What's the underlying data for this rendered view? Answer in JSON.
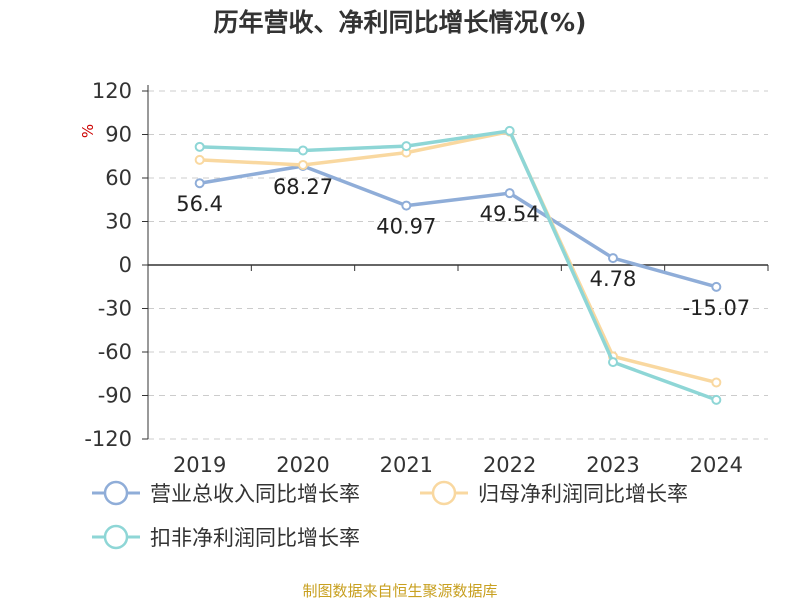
{
  "chart_data": {
    "type": "line",
    "title": "历年营收、净利同比增长情况(%)",
    "ylabel": "%",
    "xlabel": "",
    "categories": [
      "2019",
      "2020",
      "2021",
      "2022",
      "2023",
      "2024"
    ],
    "ylim": [
      -120,
      120
    ],
    "yticks": [
      120,
      90,
      60,
      30,
      0,
      -30,
      -60,
      -90,
      -120
    ],
    "grid": true,
    "legend_position": "bottom",
    "series": [
      {
        "name": "营业总收入同比增长率",
        "color": "#8fadd8",
        "values": [
          56.4,
          68.27,
          40.97,
          49.54,
          4.78,
          -15.07
        ],
        "data_labels": [
          "56.4",
          "68.27",
          "40.97",
          "49.54",
          "4.78",
          "-15.07"
        ]
      },
      {
        "name": "归母净利润同比增长率",
        "color": "#f9d8a0",
        "values": [
          72.5,
          69.0,
          77.5,
          92.0,
          -63.0,
          -81.0
        ]
      },
      {
        "name": "扣非净利润同比增长率",
        "color": "#8ed6d6",
        "values": [
          81.5,
          79.0,
          82.0,
          92.5,
          -67.0,
          -93.0
        ]
      }
    ]
  },
  "footer": {
    "source": "制图数据来自恒生聚源数据库"
  }
}
